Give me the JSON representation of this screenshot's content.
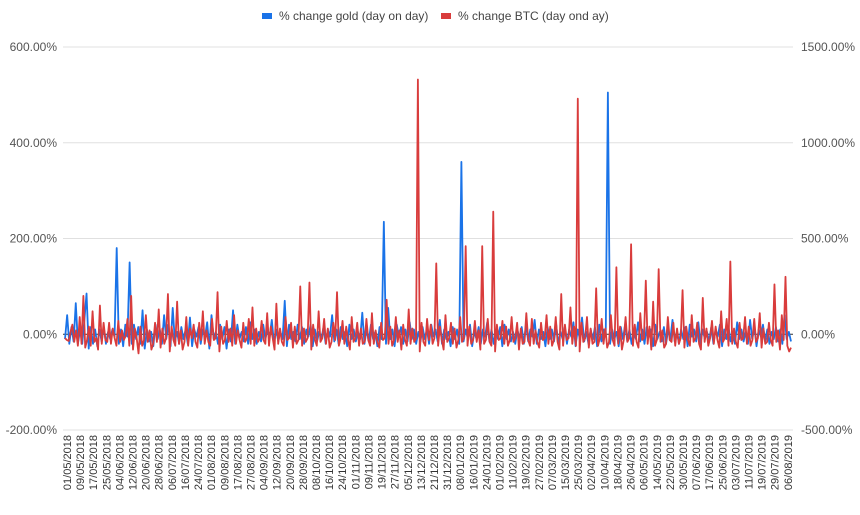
{
  "chart_data": {
    "type": "line",
    "title": "",
    "legend_position": "top",
    "grid": true,
    "y_left": {
      "min": -200,
      "max": 600,
      "step": 200,
      "tick_labels": [
        "-200.00%",
        "0.00%",
        "200.00%",
        "400.00%",
        "600.00%"
      ]
    },
    "y_right": {
      "min": -500,
      "max": 1500,
      "step": 500,
      "tick_labels": [
        "-500.00%",
        "0.00%",
        "500.00%",
        "1000.00%",
        "1500.00%"
      ]
    },
    "x_tick_labels": [
      "01/05/2018",
      "09/05/2018",
      "17/05/2018",
      "25/05/2018",
      "04/06/2018",
      "12/06/2018",
      "20/06/2018",
      "28/06/2018",
      "06/07/2018",
      "16/07/2018",
      "24/07/2018",
      "01/08/2018",
      "09/08/2018",
      "17/08/2018",
      "27/08/2018",
      "04/09/2018",
      "12/09/2018",
      "20/09/2018",
      "28/09/2018",
      "08/10/2018",
      "16/10/2018",
      "24/10/2018",
      "01/11/2018",
      "09/11/2018",
      "19/11/2018",
      "27/11/2018",
      "05/12/2018",
      "13/12/2018",
      "21/12/2018",
      "31/12/2018",
      "08/01/2019",
      "16/01/2019",
      "24/01/2019",
      "01/02/2019",
      "11/02/2019",
      "19/02/2019",
      "27/02/2019",
      "07/03/2019",
      "15/03/2019",
      "25/03/2019",
      "02/04/2019",
      "10/04/2019",
      "18/04/2019",
      "26/04/2019",
      "06/05/2019",
      "14/05/2019",
      "22/05/2019",
      "30/05/2019",
      "07/06/2019",
      "17/06/2019",
      "25/06/2019",
      "03/07/2019",
      "11/07/2019",
      "19/07/2019",
      "29/07/2019",
      "06/08/2019"
    ],
    "series": [
      {
        "name": "% change gold (day on day)",
        "color": "#1a73e8",
        "axis": "left",
        "values": [
          -10,
          40,
          -20,
          15,
          -15,
          65,
          -20,
          10,
          -20,
          30,
          85,
          -30,
          15,
          -20,
          10,
          -25,
          10,
          -15,
          15,
          -20,
          5,
          -10,
          10,
          -5,
          180,
          -20,
          10,
          -25,
          20,
          -5,
          150,
          -20,
          20,
          -10,
          15,
          -20,
          50,
          -30,
          10,
          -15,
          5,
          -25,
          20,
          -10,
          10,
          -20,
          40,
          -10,
          20,
          -25,
          55,
          -15,
          5,
          -20,
          15,
          -10,
          10,
          -20,
          35,
          -25,
          10,
          -5,
          15,
          -20,
          10,
          -5,
          25,
          -30,
          40,
          -10,
          5,
          -20,
          20,
          -10,
          15,
          -30,
          10,
          -15,
          50,
          -20,
          20,
          -10,
          5,
          -15,
          15,
          -20,
          25,
          -10,
          10,
          -20,
          5,
          -15,
          20,
          -10,
          10,
          -5,
          30,
          -20,
          10,
          -15,
          5,
          -10,
          70,
          -25,
          20,
          -10,
          5,
          -15,
          20,
          -10,
          15,
          -20,
          10,
          -5,
          20,
          -25,
          10,
          -15,
          5,
          -10,
          15,
          -20,
          10,
          -5,
          40,
          -15,
          10,
          -20,
          15,
          -10,
          5,
          -25,
          20,
          -10,
          10,
          -15,
          5,
          -10,
          45,
          -20,
          10,
          -15,
          20,
          -10,
          5,
          -25,
          15,
          -10,
          235,
          -20,
          55,
          -10,
          10,
          -25,
          20,
          -5,
          15,
          -20,
          10,
          -15,
          25,
          -10,
          10,
          -20,
          5,
          -15,
          15,
          -10,
          10,
          -20,
          20,
          -5,
          10,
          -15,
          30,
          -20,
          10,
          -10,
          5,
          -25,
          15,
          -10,
          10,
          -20,
          360,
          -15,
          10,
          -10,
          20,
          -25,
          5,
          -10,
          15,
          -20,
          10,
          -5,
          25,
          -15,
          10,
          -20,
          5,
          -10,
          15,
          -25,
          20,
          -10,
          10,
          -15,
          5,
          -20,
          10,
          -10,
          15,
          -20,
          20,
          -15,
          10,
          -5,
          30,
          -20,
          10,
          -10,
          5,
          -25,
          15,
          -10,
          10,
          -15,
          20,
          -20,
          5,
          -10,
          15,
          -20,
          10,
          -5,
          25,
          -25,
          10,
          -10,
          35,
          -15,
          5,
          -20,
          10,
          -10,
          15,
          -25,
          20,
          -15,
          10,
          -5,
          505,
          -20,
          10,
          -10,
          5,
          -25,
          15,
          -10,
          20,
          -15,
          10,
          -20,
          5,
          -10,
          25,
          -15,
          10,
          -20,
          15,
          -5,
          10,
          -25,
          20,
          -10,
          5,
          -15,
          15,
          -20,
          10,
          -10,
          30,
          -15,
          5,
          -20,
          10,
          -10,
          15,
          -25,
          20,
          -5,
          10,
          -15,
          25,
          -20,
          10,
          -10,
          5,
          -15,
          15,
          -20,
          10,
          -5,
          20,
          -25,
          10,
          -10,
          15,
          -15,
          5,
          -20,
          25,
          -10,
          10,
          -15,
          5,
          -20,
          30,
          -10,
          15,
          -25,
          10,
          -5,
          20,
          -15,
          10,
          -20,
          5,
          -10,
          15,
          -15,
          10,
          -20,
          40,
          -10,
          5,
          -15
        ]
      },
      {
        "name": "% change BTC (day ond ay)",
        "color": "#d93c3c",
        "axis": "right",
        "values": [
          -20,
          -30,
          -35,
          10,
          50,
          -40,
          20,
          -60,
          90,
          -50,
          200,
          -70,
          -30,
          40,
          -60,
          120,
          -40,
          -20,
          -80,
          150,
          -50,
          60,
          -30,
          -40,
          60,
          -50,
          30,
          -20,
          -60,
          70,
          -40,
          20,
          -30,
          -10,
          80,
          -60,
          200,
          -80,
          30,
          -20,
          -100,
          40,
          -60,
          -30,
          100,
          -40,
          20,
          -80,
          -50,
          60,
          -40,
          130,
          -70,
          30,
          -50,
          -20,
          210,
          -90,
          40,
          -30,
          -60,
          170,
          -50,
          20,
          -80,
          -40,
          90,
          -60,
          30,
          -20,
          50,
          -40,
          -70,
          60,
          -30,
          120,
          -50,
          20,
          -40,
          -60,
          80,
          -30,
          -20,
          220,
          -90,
          40,
          -50,
          -30,
          70,
          -40,
          30,
          -60,
          100,
          -50,
          20,
          -30,
          -70,
          60,
          -40,
          -20,
          80,
          -50,
          140,
          -60,
          30,
          -40,
          -20,
          70,
          -30,
          -50,
          110,
          -60,
          40,
          -20,
          -80,
          160,
          -50,
          30,
          -40,
          -60,
          90,
          -30,
          -20,
          60,
          -70,
          40,
          -50,
          -30,
          250,
          -60,
          30,
          -40,
          -20,
          270,
          -80,
          50,
          -30,
          -60,
          120,
          -40,
          -20,
          80,
          -50,
          30,
          -70,
          -40,
          60,
          -30,
          220,
          -60,
          -20,
          70,
          -50,
          40,
          -30,
          -80,
          90,
          -40,
          -20,
          60,
          -60,
          30,
          -50,
          -40,
          80,
          -30,
          -60,
          110,
          -50,
          20,
          -40,
          -70,
          60,
          -30,
          -20,
          180,
          -50,
          40,
          -60,
          -30,
          90,
          -40,
          20,
          -80,
          50,
          -30,
          -60,
          130,
          -50,
          30,
          -40,
          -20,
          1330,
          -90,
          60,
          -40,
          -60,
          80,
          -30,
          50,
          -50,
          -20,
          370,
          -60,
          40,
          -30,
          -80,
          100,
          -40,
          -20,
          60,
          -50,
          30,
          -70,
          -30,
          90,
          -40,
          -20,
          460,
          -60,
          40,
          -50,
          -30,
          70,
          -40,
          20,
          -80,
          460,
          -50,
          -30,
          80,
          -40,
          -60,
          640,
          -90,
          50,
          -30,
          -20,
          70,
          -50,
          40,
          -60,
          -30,
          90,
          -40,
          -20,
          60,
          -80,
          30,
          -50,
          -40,
          110,
          -30,
          -60,
          80,
          -50,
          20,
          -40,
          -70,
          60,
          -30,
          -20,
          100,
          -50,
          40,
          -60,
          -30,
          90,
          -40,
          -80,
          210,
          -60,
          50,
          -30,
          -20,
          140,
          -50,
          40,
          -60,
          1230,
          -90,
          60,
          -40,
          -20,
          90,
          -70,
          30,
          -50,
          -40,
          240,
          -60,
          -20,
          80,
          -50,
          30,
          -70,
          -40,
          100,
          -30,
          -60,
          350,
          -50,
          40,
          -80,
          -30,
          90,
          -40,
          -20,
          470,
          -60,
          50,
          -40,
          -70,
          110,
          -30,
          -20,
          280,
          -50,
          40,
          -80,
          170,
          -60,
          -30,
          340,
          -40,
          20,
          -70,
          -50,
          90,
          -30,
          -40,
          60,
          -60,
          30,
          -50,
          -20,
          230,
          -70,
          40,
          -30,
          -60,
          100,
          -40,
          -20,
          60,
          -50,
          -80,
          190,
          -40,
          30,
          -60,
          -20,
          70,
          -50,
          40,
          -30,
          -70,
          120,
          -40,
          -20,
          80,
          -60,
          380,
          -50,
          30,
          -40,
          -70,
          60,
          -30,
          -20,
          90,
          -50,
          40,
          -60,
          -30,
          80,
          -40,
          -20,
          110,
          -70,
          30,
          -50,
          -40,
          60,
          -30,
          -60,
          260,
          -40,
          20,
          -80,
          100,
          -30,
          300,
          -60,
          -90,
          -70
        ]
      }
    ]
  }
}
